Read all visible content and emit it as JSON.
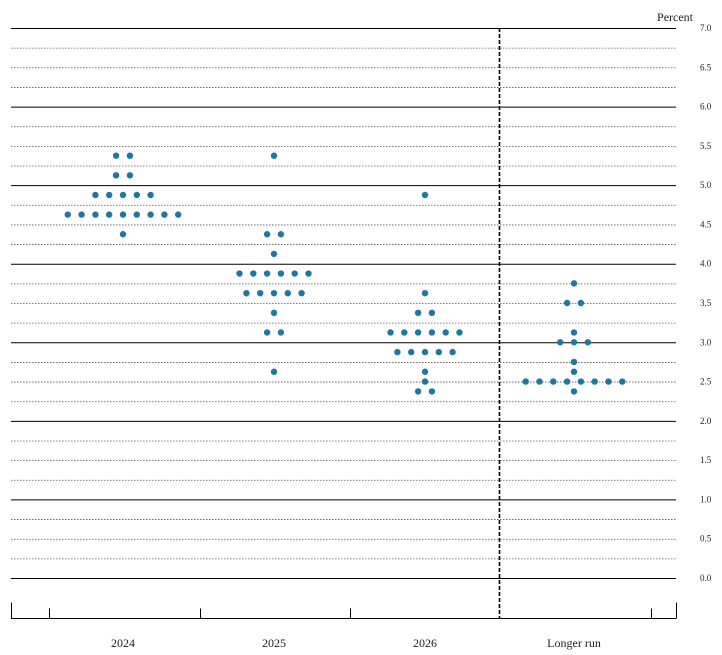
{
  "chart_data": {
    "type": "scatter",
    "unit_label": "Percent",
    "categories": [
      "2024",
      "2025",
      "2026",
      "Longer run"
    ],
    "y_ticks": [
      "0.0",
      "0.5",
      "1.0",
      "1.5",
      "2.0",
      "2.5",
      "3.0",
      "3.5",
      "4.0",
      "4.5",
      "5.0",
      "5.5",
      "6.0",
      "6.5",
      "7.0"
    ],
    "ylim": [
      0,
      7
    ],
    "grid": true,
    "dot_color": "#1f77a0",
    "series": [
      {
        "category": "2024",
        "points": [
          {
            "y": 5.375,
            "count": 2
          },
          {
            "y": 5.125,
            "count": 2
          },
          {
            "y": 4.875,
            "count": 5
          },
          {
            "y": 4.625,
            "count": 9
          },
          {
            "y": 4.375,
            "count": 1
          }
        ]
      },
      {
        "category": "2025",
        "points": [
          {
            "y": 5.375,
            "count": 1
          },
          {
            "y": 4.375,
            "count": 2
          },
          {
            "y": 4.125,
            "count": 1
          },
          {
            "y": 3.875,
            "count": 6
          },
          {
            "y": 3.625,
            "count": 5
          },
          {
            "y": 3.375,
            "count": 1
          },
          {
            "y": 3.125,
            "count": 2
          },
          {
            "y": 2.625,
            "count": 1
          }
        ]
      },
      {
        "category": "2026",
        "points": [
          {
            "y": 4.875,
            "count": 1
          },
          {
            "y": 3.625,
            "count": 1
          },
          {
            "y": 3.375,
            "count": 2
          },
          {
            "y": 3.125,
            "count": 6
          },
          {
            "y": 2.875,
            "count": 5
          },
          {
            "y": 2.625,
            "count": 1
          },
          {
            "y": 2.5,
            "count": 1
          },
          {
            "y": 2.375,
            "count": 2
          }
        ]
      },
      {
        "category": "Longer run",
        "points": [
          {
            "y": 3.75,
            "count": 1
          },
          {
            "y": 3.5,
            "count": 2
          },
          {
            "y": 3.125,
            "count": 1
          },
          {
            "y": 3.0,
            "count": 3
          },
          {
            "y": 2.75,
            "count": 1
          },
          {
            "y": 2.625,
            "count": 1
          },
          {
            "y": 2.5,
            "count": 8
          },
          {
            "y": 2.375,
            "count": 1
          }
        ]
      }
    ]
  }
}
